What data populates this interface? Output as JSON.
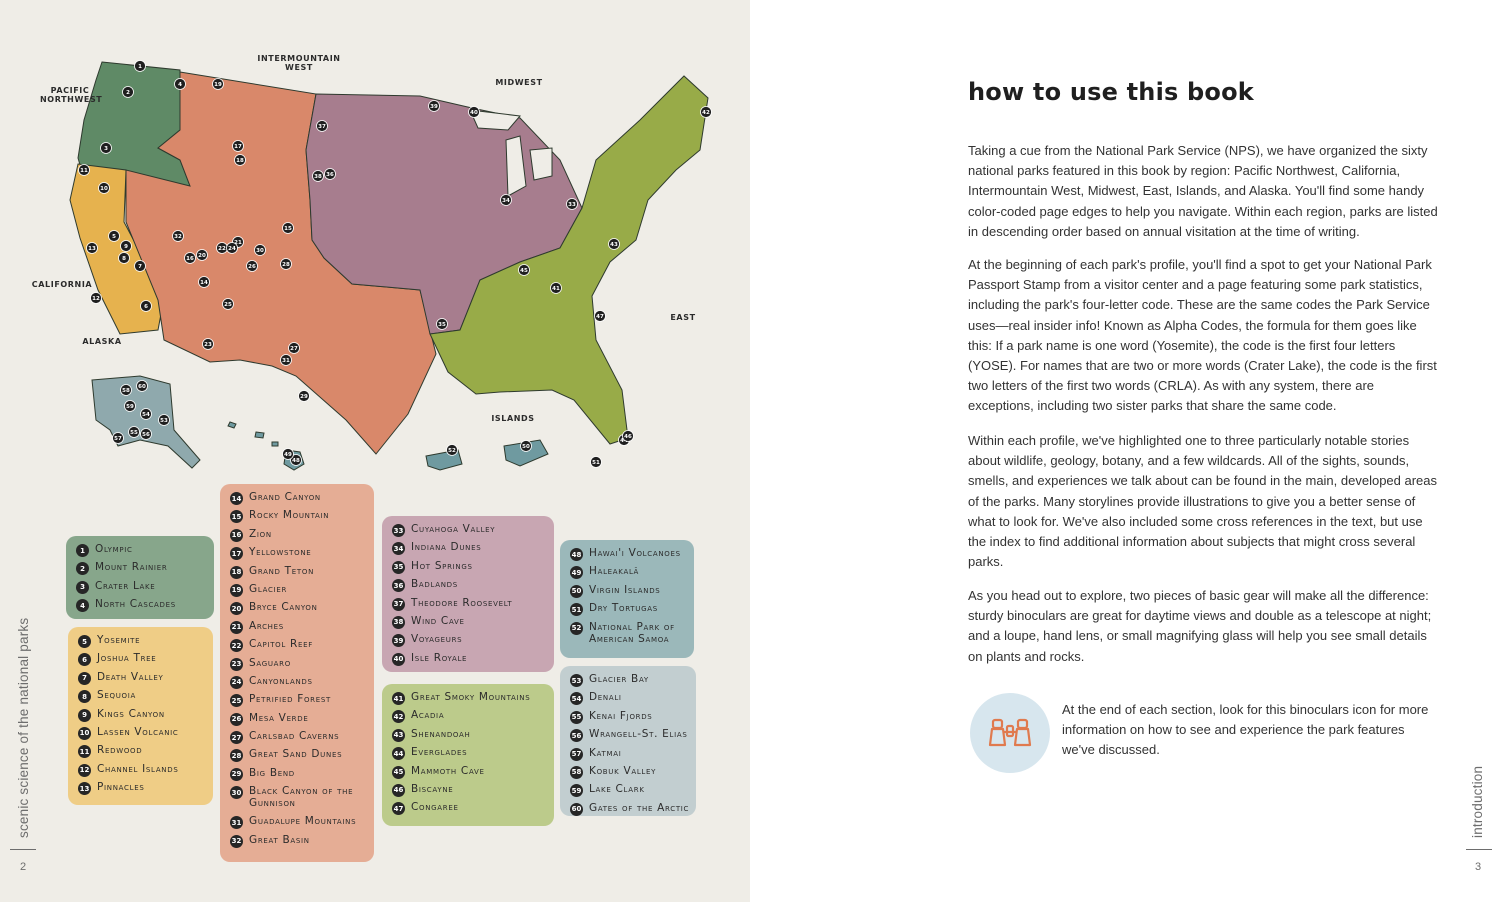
{
  "left_page": {
    "region_labels": {
      "pacific_northwest": "PACIFIC\nNORTHWEST",
      "intermountain_west": "INTERMOUNTAIN\nWEST",
      "midwest": "MIDWEST",
      "california": "CALIFORNIA",
      "alaska": "ALASKA",
      "islands": "ISLANDS",
      "east": "EAST"
    },
    "map_pins": [
      "1",
      "2",
      "3",
      "4",
      "5",
      "6",
      "7",
      "8",
      "9",
      "10",
      "11",
      "12",
      "13",
      "14",
      "15",
      "16",
      "17",
      "18",
      "19",
      "20",
      "21",
      "22",
      "23",
      "24",
      "25",
      "26",
      "27",
      "28",
      "29",
      "30",
      "31",
      "32",
      "33",
      "34",
      "35",
      "36",
      "37",
      "38",
      "39",
      "40",
      "41",
      "42",
      "43",
      "44",
      "45",
      "46",
      "47",
      "48",
      "49",
      "50",
      "51",
      "52",
      "53",
      "54",
      "55",
      "56",
      "57",
      "58",
      "59",
      "60"
    ],
    "legend_groups": [
      {
        "items": [
          {
            "num": "1",
            "name": "Olympic"
          },
          {
            "num": "2",
            "name": "Mount Rainier"
          },
          {
            "num": "3",
            "name": "Crater Lake"
          },
          {
            "num": "4",
            "name": "North Cascades"
          }
        ]
      },
      {
        "items": [
          {
            "num": "5",
            "name": "Yosemite"
          },
          {
            "num": "6",
            "name": "Joshua Tree"
          },
          {
            "num": "7",
            "name": "Death Valley"
          },
          {
            "num": "8",
            "name": "Sequoia"
          },
          {
            "num": "9",
            "name": "Kings Canyon"
          },
          {
            "num": "10",
            "name": "Lassen Volcanic"
          },
          {
            "num": "11",
            "name": "Redwood"
          },
          {
            "num": "12",
            "name": "Channel Islands"
          },
          {
            "num": "13",
            "name": "Pinnacles"
          }
        ]
      },
      {
        "items": [
          {
            "num": "14",
            "name": "Grand Canyon"
          },
          {
            "num": "15",
            "name": "Rocky Mountain"
          },
          {
            "num": "16",
            "name": "Zion"
          },
          {
            "num": "17",
            "name": "Yellowstone"
          },
          {
            "num": "18",
            "name": "Grand Teton"
          },
          {
            "num": "19",
            "name": "Glacier"
          },
          {
            "num": "20",
            "name": "Bryce Canyon"
          },
          {
            "num": "21",
            "name": "Arches"
          },
          {
            "num": "22",
            "name": "Capitol Reef"
          },
          {
            "num": "23",
            "name": "Saguaro"
          },
          {
            "num": "24",
            "name": "Canyonlands"
          },
          {
            "num": "25",
            "name": "Petrified Forest"
          },
          {
            "num": "26",
            "name": "Mesa Verde"
          },
          {
            "num": "27",
            "name": "Carlsbad Caverns"
          },
          {
            "num": "28",
            "name": "Great Sand Dunes"
          },
          {
            "num": "29",
            "name": "Big Bend"
          },
          {
            "num": "30",
            "name": "Black Canyon of the Gunnison"
          },
          {
            "num": "31",
            "name": "Guadalupe Mountains"
          },
          {
            "num": "32",
            "name": "Great Basin"
          }
        ]
      },
      {
        "items": [
          {
            "num": "33",
            "name": "Cuyahoga Valley"
          },
          {
            "num": "34",
            "name": "Indiana Dunes"
          },
          {
            "num": "35",
            "name": "Hot Springs"
          },
          {
            "num": "36",
            "name": "Badlands"
          },
          {
            "num": "37",
            "name": "Theodore Roosevelt"
          },
          {
            "num": "38",
            "name": "Wind Cave"
          },
          {
            "num": "39",
            "name": "Voyageurs"
          },
          {
            "num": "40",
            "name": "Isle Royale"
          }
        ]
      },
      {
        "items": [
          {
            "num": "41",
            "name": "Great Smoky Mountains"
          },
          {
            "num": "42",
            "name": "Acadia"
          },
          {
            "num": "43",
            "name": "Shenandoah"
          },
          {
            "num": "44",
            "name": "Everglades"
          },
          {
            "num": "45",
            "name": "Mammoth Cave"
          },
          {
            "num": "46",
            "name": "Biscayne"
          },
          {
            "num": "47",
            "name": "Congaree"
          }
        ]
      },
      {
        "items": [
          {
            "num": "48",
            "name": "Hawai'i Volcanoes"
          },
          {
            "num": "49",
            "name": "Haleakalā"
          },
          {
            "num": "50",
            "name": "Virgin Islands"
          },
          {
            "num": "51",
            "name": "Dry Tortugas"
          },
          {
            "num": "52",
            "name": "National Park of American Samoa"
          }
        ]
      },
      {
        "items": [
          {
            "num": "53",
            "name": "Glacier Bay"
          },
          {
            "num": "54",
            "name": "Denali"
          },
          {
            "num": "55",
            "name": "Kenai Fjords"
          },
          {
            "num": "56",
            "name": "Wrangell-St. Elias"
          },
          {
            "num": "57",
            "name": "Katmai"
          },
          {
            "num": "58",
            "name": "Kobuk Valley"
          },
          {
            "num": "59",
            "name": "Lake Clark"
          },
          {
            "num": "60",
            "name": "Gates of the Arctic"
          }
        ]
      }
    ],
    "spine_text": "scenic science of the national parks",
    "page_number": "2"
  },
  "right_page": {
    "heading": "how to use this book",
    "paragraphs": [
      "Taking a cue from the National Park Service (NPS), we have organized the sixty national parks featured in this book by region: Pacific Northwest, California, Intermountain West, Midwest, East, Islands, and Alaska. You'll find some handy color-coded page edges to help you navigate. Within each region, parks are listed in descending order based on annual visitation at the time of writing.",
      "At the beginning of each park's profile, you'll find a spot to get your National Park Passport Stamp from a visitor center and a page featuring some park statistics, including the park's four-letter code. These are the same codes the Park Service uses—real insider info! Known as Alpha Codes, the formula for them goes like this: If a park name is one word (Yosemite), the code is the first four letters (YOSE). For names that are two or more words (Crater Lake), the code is the first two letters of the first two words (CRLA). As with any system, there are exceptions, including two sister parks that share the same code.",
      "Within each profile, we've highlighted one to three particularly notable stories about wildlife, geology, botany, and a few wildcards. All of the sights, sounds, smells, and experiences we talk about can be found in the main, developed areas of the parks. Many storylines provide illustrations to give you a better sense of what to look for. We've also included some cross references in the text, but use the index to find additional information about subjects that might cross several parks.",
      "As you head out to explore, two pieces of basic gear will make all the difference: sturdy binoculars are great for daytime views and double as a telescope at night; and a loupe, hand lens, or small magnifying glass will help you see small details on plants and rocks."
    ],
    "callout": "At the end of each section, look for this binoculars icon for more information on how to see and experience the park features we've discussed.",
    "icon": "binoculars-icon",
    "spine_text": "introduction",
    "page_number": "3"
  },
  "colors": {
    "pacific_northwest": "#5f8a66",
    "california": "#e6b24e",
    "intermountain_west": "#d9886a",
    "midwest": "#a77d8e",
    "east": "#98ab48",
    "islands": "#6f9aa0",
    "alaska": "#8fa9ad",
    "legend_pnw": "#87a68b",
    "legend_california": "#efcd86",
    "legend_intermountain": "#e5ad95",
    "legend_midwest": "#c8a6b2",
    "legend_east": "#bccb8b",
    "legend_islands": "#9bb8ba",
    "legend_alaska": "#c2ced0"
  }
}
